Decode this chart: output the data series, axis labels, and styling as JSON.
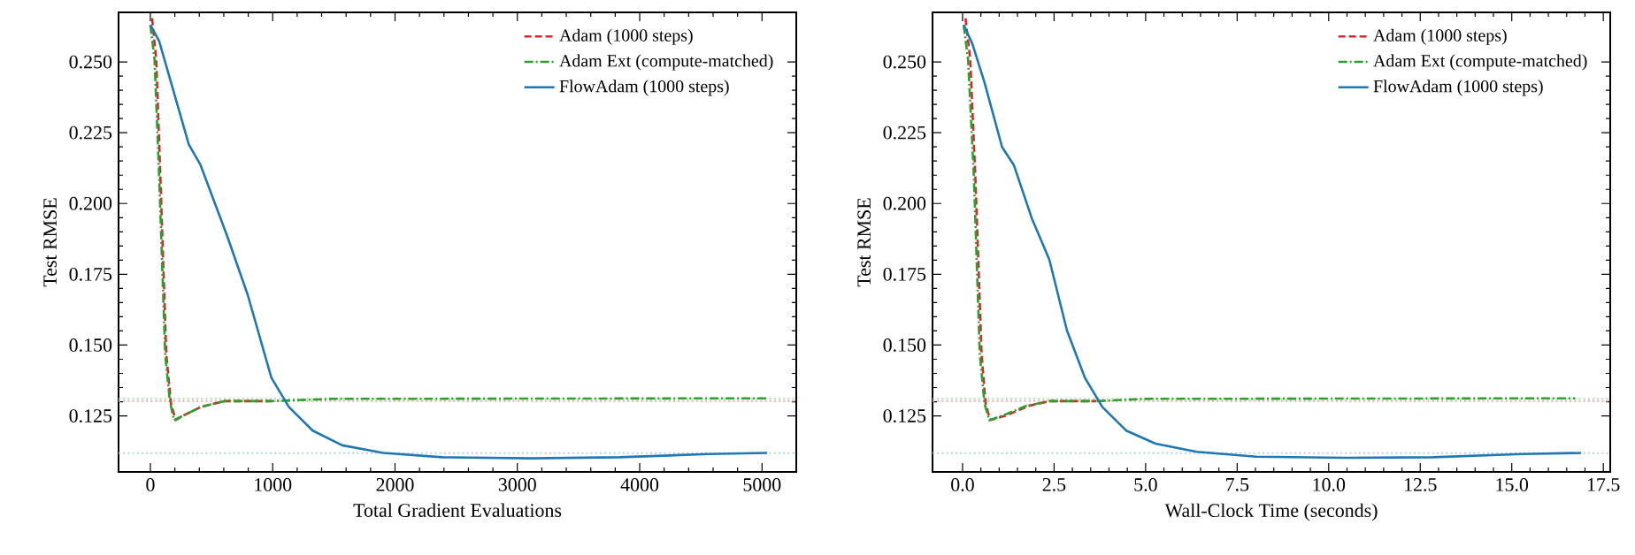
{
  "chart_data": [
    {
      "type": "line",
      "xlabel": "Total Gradient Evaluations",
      "ylabel": "Test RMSE",
      "xlim": [
        -260,
        5280
      ],
      "ylim": [
        0.1052,
        0.2675
      ],
      "xticks": [
        {
          "value": 0,
          "label": "0"
        },
        {
          "value": 1000,
          "label": "1000"
        },
        {
          "value": 2000,
          "label": "2000"
        },
        {
          "value": 3000,
          "label": "3000"
        },
        {
          "value": 4000,
          "label": "4000"
        },
        {
          "value": 5000,
          "label": "5000"
        }
      ],
      "yticks": [
        {
          "value": 0.125,
          "label": "0.125"
        },
        {
          "value": 0.15,
          "label": "0.150"
        },
        {
          "value": 0.175,
          "label": "0.175"
        },
        {
          "value": 0.2,
          "label": "0.200"
        },
        {
          "value": 0.225,
          "label": "0.225"
        },
        {
          "value": 0.25,
          "label": "0.250"
        }
      ],
      "legend": "top right",
      "grid": false,
      "ref_lines": [
        {
          "axis": "y",
          "value": 0.1302,
          "color": "#f2a5a5",
          "line_style": "dotted"
        },
        {
          "axis": "y",
          "value": 0.131,
          "color": "#a3d6a3",
          "line_style": "dotted"
        },
        {
          "axis": "y",
          "value": 0.1119,
          "color": "#a6cbe8",
          "line_style": "dotted"
        }
      ],
      "series": [
        {
          "name": "Adam (1000 steps)",
          "color": "#d62728",
          "line_style": "dashed",
          "x": [
            14,
            48,
            82,
            130,
            169,
            207,
            265,
            410,
            603,
            989
          ],
          "values": [
            0.2654,
            0.2509,
            0.2093,
            0.1468,
            0.1292,
            0.1235,
            0.125,
            0.1281,
            0.1302,
            0.1302
          ]
        },
        {
          "name": "Adam Ext (compute-matched)",
          "color": "#2ca02c",
          "line_style": "dashdot",
          "x": [
            0,
            34,
            72,
            121,
            159,
            193,
            265,
            410,
            603,
            989,
            1471,
            5041
          ],
          "values": [
            0.263,
            0.2509,
            0.2093,
            0.1468,
            0.1302,
            0.1235,
            0.125,
            0.1281,
            0.1302,
            0.1302,
            0.131,
            0.1312
          ]
        },
        {
          "name": "FlowAdam (1000 steps)",
          "color": "#1f77b4",
          "line_style": "solid",
          "x": [
            0,
            72,
            169,
            314,
            410,
            627,
            796,
            989,
            1133,
            1327,
            1568,
            1905,
            2388,
            3111,
            3835,
            4559,
            5041
          ],
          "values": [
            0.2631,
            0.2573,
            0.2427,
            0.2209,
            0.2136,
            0.1886,
            0.1677,
            0.1385,
            0.1281,
            0.1198,
            0.1146,
            0.1119,
            0.1104,
            0.11,
            0.1104,
            0.1115,
            0.1119
          ]
        }
      ]
    },
    {
      "type": "line",
      "xlabel": "Wall-Clock Time (seconds)",
      "ylabel": "Test RMSE",
      "xlim": [
        -0.82,
        17.69
      ],
      "ylim": [
        0.1052,
        0.2675
      ],
      "xticks": [
        {
          "value": 0,
          "label": "0.0"
        },
        {
          "value": 2.5,
          "label": "2.5"
        },
        {
          "value": 5,
          "label": "5.0"
        },
        {
          "value": 7.5,
          "label": "7.5"
        },
        {
          "value": 10,
          "label": "10.0"
        },
        {
          "value": 12.5,
          "label": "12.5"
        },
        {
          "value": 15,
          "label": "15.0"
        },
        {
          "value": 17.5,
          "label": "17.5"
        }
      ],
      "yticks": [
        {
          "value": 0.125,
          "label": "0.125"
        },
        {
          "value": 0.15,
          "label": "0.150"
        },
        {
          "value": 0.175,
          "label": "0.175"
        },
        {
          "value": 0.2,
          "label": "0.200"
        },
        {
          "value": 0.225,
          "label": "0.225"
        },
        {
          "value": 0.25,
          "label": "0.250"
        }
      ],
      "legend": "top right",
      "grid": false,
      "ref_lines": [
        {
          "axis": "y",
          "value": 0.1302,
          "color": "#f2a5a5",
          "line_style": "dotted"
        },
        {
          "axis": "y",
          "value": 0.131,
          "color": "#a3d6a3",
          "line_style": "dotted"
        },
        {
          "axis": "y",
          "value": 0.1119,
          "color": "#a6cbe8",
          "line_style": "dotted"
        }
      ],
      "series": [
        {
          "name": "Adam (1000 steps)",
          "color": "#d62728",
          "line_style": "dashed",
          "x": [
            0.08,
            0.21,
            0.35,
            0.52,
            0.63,
            0.76,
            1.16,
            1.81,
            2.37,
            3.66
          ],
          "values": [
            0.2654,
            0.2509,
            0.2093,
            0.1468,
            0.1292,
            0.1235,
            0.125,
            0.1285,
            0.1302,
            0.1302
          ]
        },
        {
          "name": "Adam Ext (compute-matched)",
          "color": "#2ca02c",
          "line_style": "dashdot",
          "x": [
            0.03,
            0.15,
            0.31,
            0.47,
            0.6,
            0.73,
            1.08,
            1.73,
            2.37,
            3.66,
            4.95,
            16.73
          ],
          "values": [
            0.263,
            0.2509,
            0.2093,
            0.1468,
            0.1292,
            0.1235,
            0.125,
            0.1285,
            0.1302,
            0.1302,
            0.131,
            0.1312
          ]
        },
        {
          "name": "FlowAdam (1000 steps)",
          "color": "#1f77b4",
          "line_style": "solid",
          "x": [
            0.03,
            0.27,
            0.6,
            1.08,
            1.4,
            1.89,
            2.37,
            2.85,
            3.34,
            3.82,
            4.47,
            5.27,
            6.4,
            8.02,
            10.44,
            12.85,
            15.27,
            16.89
          ],
          "values": [
            0.2631,
            0.2563,
            0.2427,
            0.2199,
            0.2136,
            0.1948,
            0.1802,
            0.1552,
            0.1385,
            0.1281,
            0.1198,
            0.1152,
            0.1123,
            0.1106,
            0.1102,
            0.1104,
            0.1115,
            0.1119
          ]
        }
      ]
    }
  ]
}
